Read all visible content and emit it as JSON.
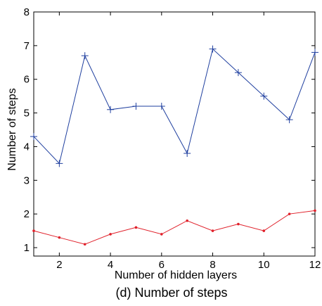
{
  "chart_data": {
    "type": "line",
    "title": "",
    "caption": "(d) Number of steps",
    "xlabel": "Number of hidden layers",
    "ylabel": "Number of steps",
    "xlim": [
      1,
      12
    ],
    "ylim": [
      0.75,
      8
    ],
    "x_ticks": [
      2,
      4,
      6,
      8,
      10,
      12
    ],
    "y_ticks": [
      1,
      2,
      3,
      4,
      5,
      6,
      7,
      8
    ],
    "grid": false,
    "legend": "none",
    "x": [
      1,
      2,
      3,
      4,
      5,
      6,
      7,
      8,
      9,
      10,
      11,
      12
    ],
    "series": [
      {
        "color": "#1f3f9f",
        "marker": "plus",
        "values": [
          4.3,
          3.5,
          6.7,
          5.1,
          5.2,
          5.2,
          3.8,
          6.9,
          6.2,
          5.5,
          4.8,
          6.8
        ]
      },
      {
        "color": "#e0202a",
        "marker": "dot",
        "values": [
          1.5,
          1.3,
          1.1,
          1.4,
          1.6,
          1.4,
          1.8,
          1.5,
          1.7,
          1.5,
          2.0,
          2.1
        ]
      }
    ]
  }
}
